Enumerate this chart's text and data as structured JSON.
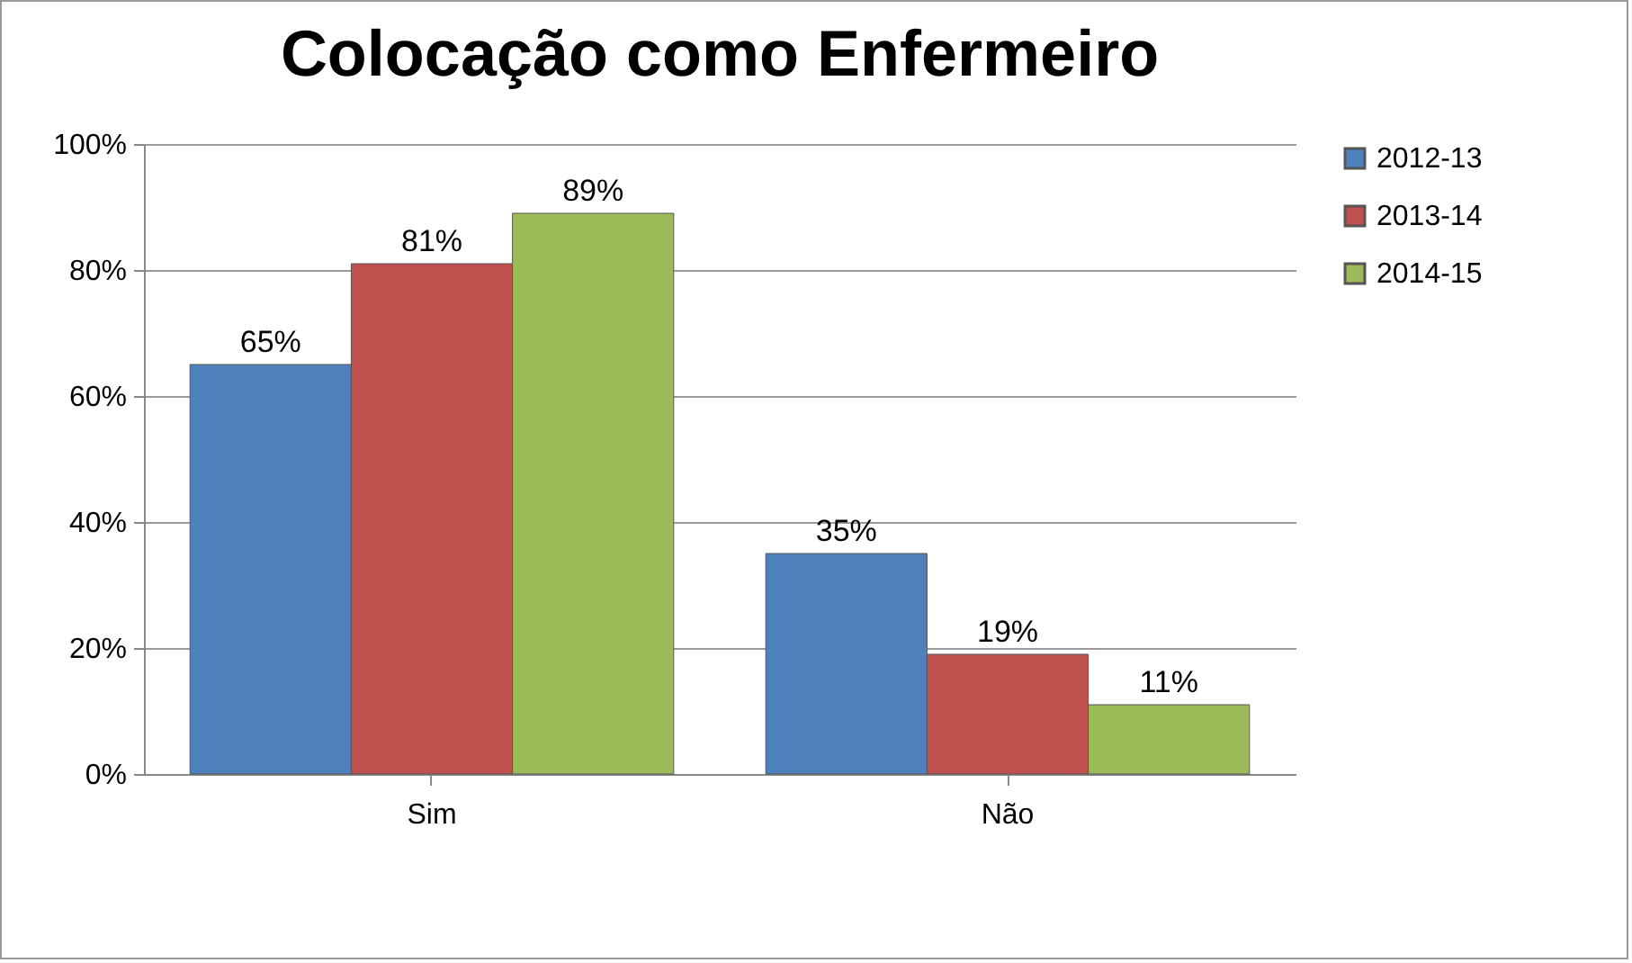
{
  "chart_data": {
    "type": "bar",
    "title": "Colocação como Enfermeiro",
    "categories": [
      "Sim",
      "Não"
    ],
    "series": [
      {
        "name": "2012-13",
        "color": "#4f81bd",
        "values": [
          65,
          35
        ],
        "value_labels": [
          "65%",
          "35%"
        ]
      },
      {
        "name": "2013-14",
        "color": "#c0504d",
        "values": [
          81,
          19
        ],
        "value_labels": [
          "81%",
          "19%"
        ]
      },
      {
        "name": "2014-15",
        "color": "#9bbb59",
        "values": [
          89,
          11
        ],
        "value_labels": [
          "89%",
          "11%"
        ]
      }
    ],
    "ylim": [
      0,
      100
    ],
    "yticks": [
      {
        "value": 0,
        "label": "0%"
      },
      {
        "value": 20,
        "label": "20%"
      },
      {
        "value": 40,
        "label": "40%"
      },
      {
        "value": 60,
        "label": "60%"
      },
      {
        "value": 80,
        "label": "80%"
      },
      {
        "value": 100,
        "label": "100%"
      }
    ],
    "grid": "y",
    "legend": "right"
  }
}
